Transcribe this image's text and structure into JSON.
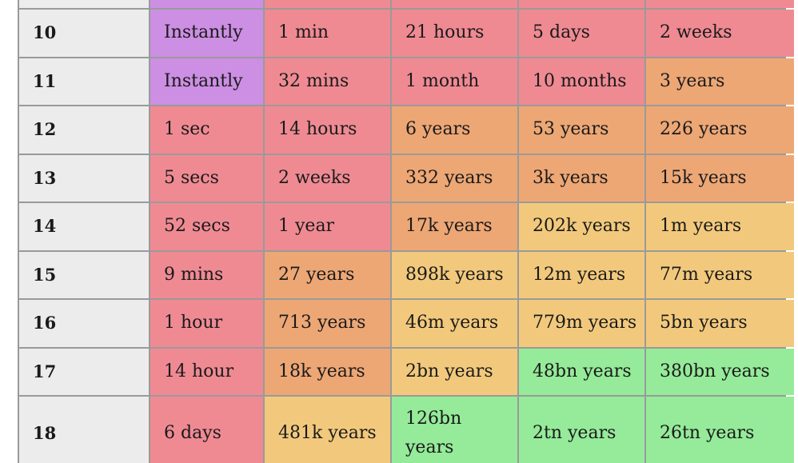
{
  "table": {
    "columns_count": 6,
    "top_partial_row": [
      {
        "text": "",
        "color": "#ececec"
      },
      {
        "text": "",
        "color": "#cc8fe3"
      },
      {
        "text": "",
        "color": "#ef8a93"
      },
      {
        "text": "",
        "color": "#ef8a93"
      },
      {
        "text": "",
        "color": "#ef8a93"
      },
      {
        "text": "",
        "color": "#ef8a93"
      }
    ],
    "rows": [
      {
        "length": "10",
        "cells": [
          {
            "text": "Instantly",
            "color": "#cc8fe3"
          },
          {
            "text": "1 min",
            "color": "#ef8a93"
          },
          {
            "text": "21 hours",
            "color": "#ef8a93"
          },
          {
            "text": "5 days",
            "color": "#ef8a93"
          },
          {
            "text": "2 weeks",
            "color": "#ef8a93"
          }
        ]
      },
      {
        "length": "11",
        "cells": [
          {
            "text": "Instantly",
            "color": "#cc8fe3"
          },
          {
            "text": "32 mins",
            "color": "#ef8a93"
          },
          {
            "text": "1 month",
            "color": "#ef8a93"
          },
          {
            "text": "10 months",
            "color": "#ef8a93"
          },
          {
            "text": "3 years",
            "color": "#eda775"
          }
        ]
      },
      {
        "length": "12",
        "cells": [
          {
            "text": "1 sec",
            "color": "#ef8a93"
          },
          {
            "text": "14 hours",
            "color": "#ef8a93"
          },
          {
            "text": "6 years",
            "color": "#eda775"
          },
          {
            "text": "53 years",
            "color": "#eda775"
          },
          {
            "text": "226 years",
            "color": "#eda775"
          }
        ]
      },
      {
        "length": "13",
        "cells": [
          {
            "text": "5 secs",
            "color": "#ef8a93"
          },
          {
            "text": "2 weeks",
            "color": "#ef8a93"
          },
          {
            "text": "332 years",
            "color": "#eda775"
          },
          {
            "text": "3k years",
            "color": "#eda775"
          },
          {
            "text": "15k years",
            "color": "#eda775"
          }
        ]
      },
      {
        "length": "14",
        "cells": [
          {
            "text": "52 secs",
            "color": "#ef8a93"
          },
          {
            "text": "1 year",
            "color": "#ef8a93"
          },
          {
            "text": "17k years",
            "color": "#eda775"
          },
          {
            "text": "202k years",
            "color": "#f2c97c"
          },
          {
            "text": "1m years",
            "color": "#f2c97c"
          }
        ]
      },
      {
        "length": "15",
        "cells": [
          {
            "text": "9 mins",
            "color": "#ef8a93"
          },
          {
            "text": "27 years",
            "color": "#eda775"
          },
          {
            "text": "898k years",
            "color": "#f2c97c"
          },
          {
            "text": "12m years",
            "color": "#f2c97c"
          },
          {
            "text": "77m years",
            "color": "#f2c97c"
          }
        ]
      },
      {
        "length": "16",
        "cells": [
          {
            "text": "1 hour",
            "color": "#ef8a93"
          },
          {
            "text": "713 years",
            "color": "#eda775"
          },
          {
            "text": "46m years",
            "color": "#f2c97c"
          },
          {
            "text": "779m years",
            "color": "#f2c97c"
          },
          {
            "text": "5bn years",
            "color": "#f2c97c"
          }
        ]
      },
      {
        "length": "17",
        "cells": [
          {
            "text": "14 hour",
            "color": "#ef8a93"
          },
          {
            "text": "18k years",
            "color": "#eda775"
          },
          {
            "text": "2bn years",
            "color": "#f2c97c"
          },
          {
            "text": "48bn years",
            "color": "#95eb99"
          },
          {
            "text": "380bn years",
            "color": "#95eb99"
          }
        ]
      },
      {
        "length": "18",
        "cells": [
          {
            "text": "6 days",
            "color": "#ef8a93"
          },
          {
            "text": "481k years",
            "color": "#f2c97c"
          },
          {
            "text": "126bn years",
            "color": "#95eb99"
          },
          {
            "text": "2tn years",
            "color": "#95eb99"
          },
          {
            "text": "26tn years",
            "color": "#95eb99"
          }
        ]
      }
    ]
  }
}
